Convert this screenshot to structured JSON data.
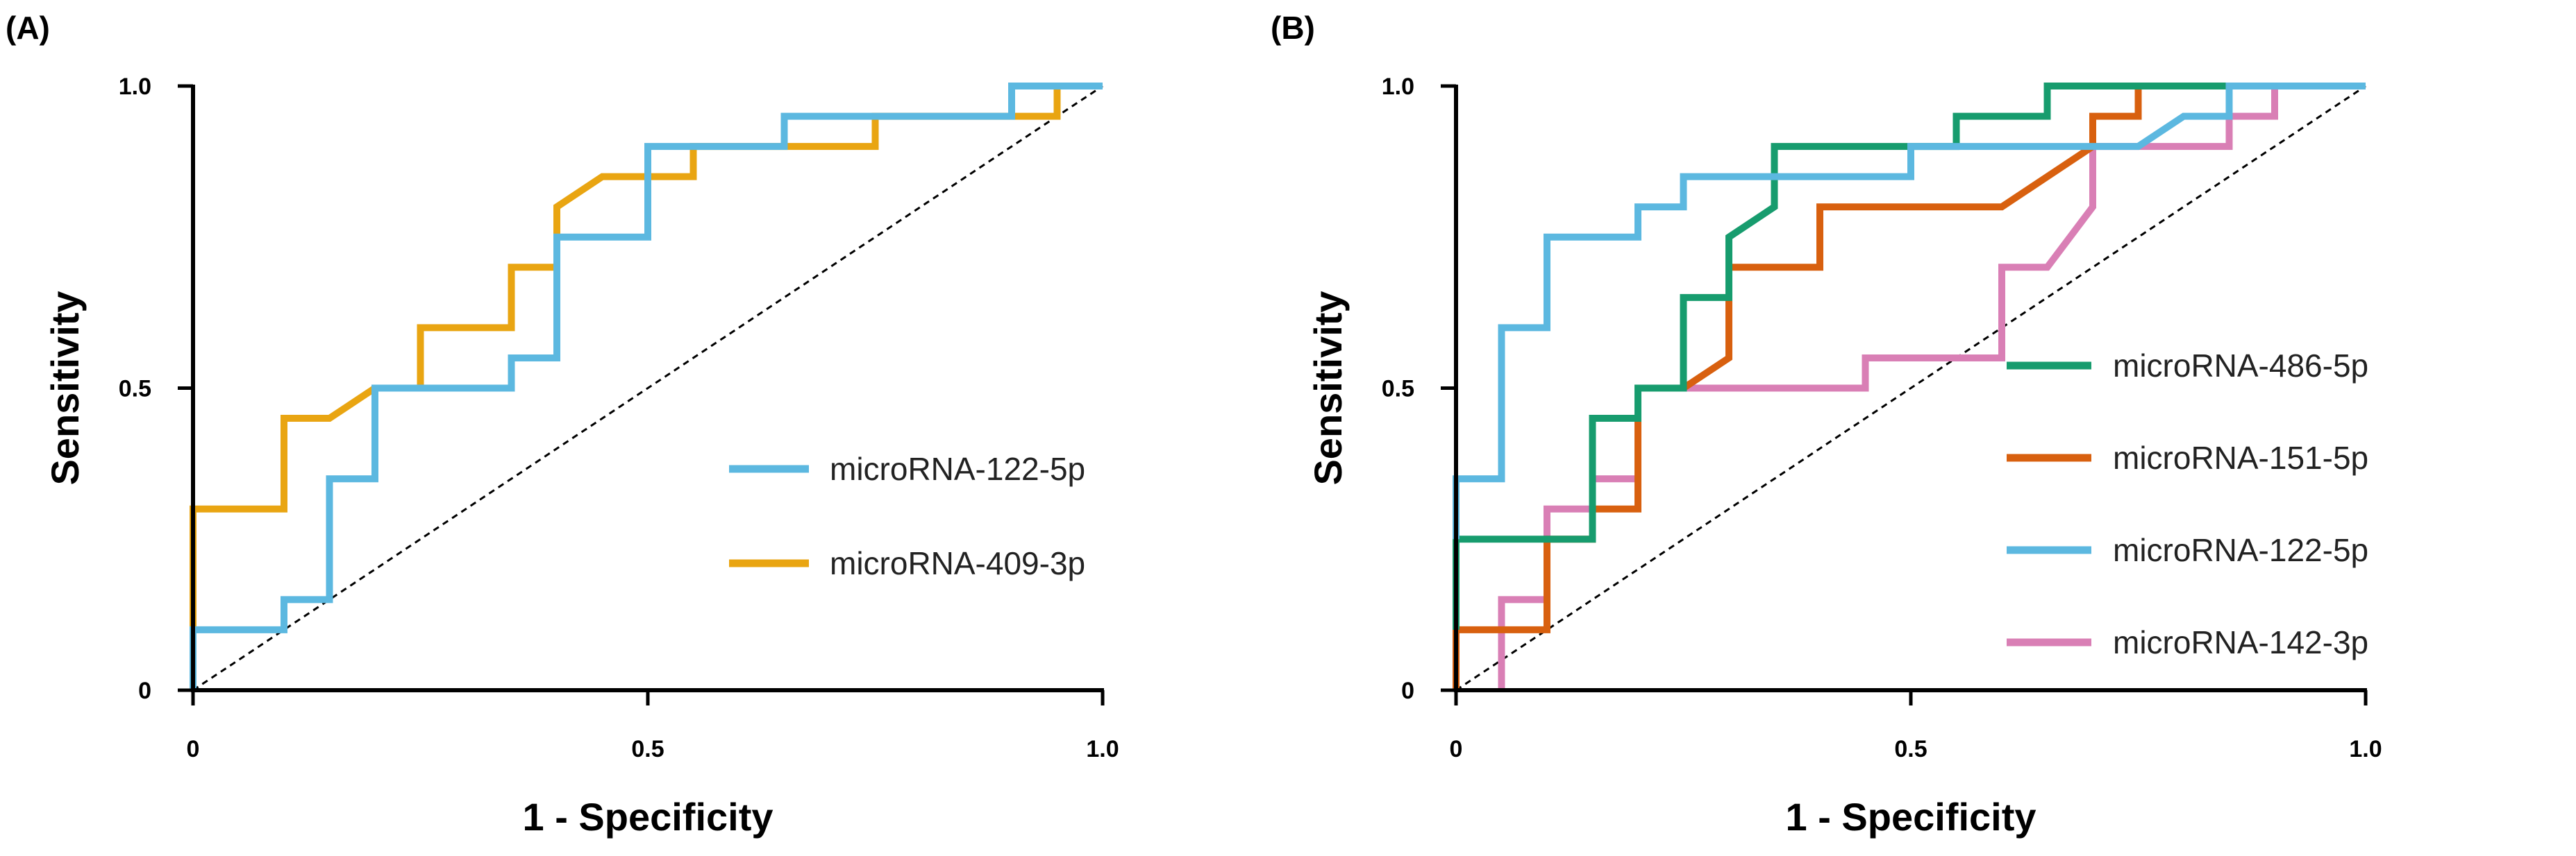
{
  "chart_data": [
    {
      "panel_label": "(A)",
      "type": "line",
      "line_shape": "step",
      "xlabel": "1 - Specificity",
      "ylabel": "Sensitivity",
      "xlim": [
        0,
        1
      ],
      "ylim": [
        0,
        1
      ],
      "xticks": [
        {
          "value": 0,
          "label": "0"
        },
        {
          "value": 0.5,
          "label": "0.5"
        },
        {
          "value": 1,
          "label": "1.0"
        }
      ],
      "yticks": [
        {
          "value": 0,
          "label": "0"
        },
        {
          "value": 0.5,
          "label": "0.5"
        },
        {
          "value": 1,
          "label": "1.0"
        }
      ],
      "grid": false,
      "legend_position": "lower-right",
      "reference_line": "diagonal-dashed",
      "series": [
        {
          "name": "microRNA-409-3p",
          "color": "#E9A512",
          "points": [
            [
              0,
              0.1
            ],
            [
              0,
              0.3
            ],
            [
              0.1,
              0.3
            ],
            [
              0.1,
              0.45
            ],
            [
              0.15,
              0.45
            ],
            [
              0.2,
              0.5
            ],
            [
              0.25,
              0.5
            ],
            [
              0.25,
              0.6
            ],
            [
              0.35,
              0.6
            ],
            [
              0.35,
              0.7
            ],
            [
              0.4,
              0.7
            ],
            [
              0.4,
              0.8
            ],
            [
              0.45,
              0.85
            ],
            [
              0.55,
              0.85
            ],
            [
              0.55,
              0.9
            ],
            [
              0.65,
              0.9
            ],
            [
              0.75,
              0.9
            ],
            [
              0.75,
              0.95
            ],
            [
              0.9,
              0.95
            ],
            [
              0.95,
              0.95
            ],
            [
              0.95,
              1
            ],
            [
              1,
              1
            ]
          ]
        },
        {
          "name": "microRNA-122-5p",
          "color": "#5CB8E0",
          "points": [
            [
              0,
              0
            ],
            [
              0,
              0.1
            ],
            [
              0.1,
              0.1
            ],
            [
              0.1,
              0.15
            ],
            [
              0.15,
              0.15
            ],
            [
              0.15,
              0.35
            ],
            [
              0.2,
              0.35
            ],
            [
              0.2,
              0.5
            ],
            [
              0.35,
              0.5
            ],
            [
              0.35,
              0.55
            ],
            [
              0.4,
              0.55
            ],
            [
              0.4,
              0.75
            ],
            [
              0.5,
              0.75
            ],
            [
              0.5,
              0.9
            ],
            [
              0.65,
              0.9
            ],
            [
              0.65,
              0.95
            ],
            [
              0.9,
              0.95
            ],
            [
              0.9,
              1
            ],
            [
              1,
              1
            ]
          ]
        }
      ],
      "legend_order": [
        "microRNA-122-5p",
        "microRNA-409-3p"
      ]
    },
    {
      "panel_label": "(B)",
      "type": "line",
      "line_shape": "step",
      "xlabel": "1 - Specificity",
      "ylabel": "Sensitivity",
      "xlim": [
        0,
        1
      ],
      "ylim": [
        0,
        1
      ],
      "xticks": [
        {
          "value": 0,
          "label": "0"
        },
        {
          "value": 0.5,
          "label": "0.5"
        },
        {
          "value": 1,
          "label": "1.0"
        }
      ],
      "yticks": [
        {
          "value": 0,
          "label": "0"
        },
        {
          "value": 0.5,
          "label": "0.5"
        },
        {
          "value": 1,
          "label": "1.0"
        }
      ],
      "grid": false,
      "legend_position": "center-right",
      "reference_line": "diagonal-dashed",
      "series": [
        {
          "name": "microRNA-142-3p",
          "color": "#D97FB5",
          "points": [
            [
              0.05,
              0
            ],
            [
              0.05,
              0.15
            ],
            [
              0.1,
              0.15
            ],
            [
              0.1,
              0.3
            ],
            [
              0.15,
              0.3
            ],
            [
              0.15,
              0.35
            ],
            [
              0.2,
              0.35
            ],
            [
              0.2,
              0.5
            ],
            [
              0.45,
              0.5
            ],
            [
              0.45,
              0.55
            ],
            [
              0.6,
              0.55
            ],
            [
              0.6,
              0.7
            ],
            [
              0.65,
              0.7
            ],
            [
              0.7,
              0.8
            ],
            [
              0.7,
              0.9
            ],
            [
              0.85,
              0.9
            ],
            [
              0.85,
              0.95
            ],
            [
              0.9,
              0.95
            ],
            [
              0.9,
              1
            ],
            [
              1,
              1
            ]
          ]
        },
        {
          "name": "microRNA-151-5p",
          "color": "#D8600F",
          "points": [
            [
              0,
              0
            ],
            [
              0,
              0.1
            ],
            [
              0.05,
              0.1
            ],
            [
              0.1,
              0.1
            ],
            [
              0.1,
              0.25
            ],
            [
              0.15,
              0.25
            ],
            [
              0.15,
              0.3
            ],
            [
              0.2,
              0.3
            ],
            [
              0.2,
              0.5
            ],
            [
              0.25,
              0.5
            ],
            [
              0.3,
              0.55
            ],
            [
              0.3,
              0.7
            ],
            [
              0.35,
              0.7
            ],
            [
              0.4,
              0.7
            ],
            [
              0.4,
              0.8
            ],
            [
              0.6,
              0.8
            ],
            [
              0.7,
              0.9
            ],
            [
              0.7,
              0.95
            ],
            [
              0.75,
              0.95
            ],
            [
              0.75,
              1
            ],
            [
              1,
              1
            ]
          ]
        },
        {
          "name": "microRNA-486-5p",
          "color": "#179C6E",
          "points": [
            [
              0,
              0.1
            ],
            [
              0,
              0.25
            ],
            [
              0.15,
              0.25
            ],
            [
              0.15,
              0.45
            ],
            [
              0.2,
              0.45
            ],
            [
              0.2,
              0.5
            ],
            [
              0.25,
              0.5
            ],
            [
              0.25,
              0.65
            ],
            [
              0.3,
              0.65
            ],
            [
              0.3,
              0.75
            ],
            [
              0.35,
              0.8
            ],
            [
              0.35,
              0.9
            ],
            [
              0.45,
              0.9
            ],
            [
              0.55,
              0.9
            ],
            [
              0.55,
              0.95
            ],
            [
              0.65,
              0.95
            ],
            [
              0.65,
              1
            ],
            [
              1,
              1
            ]
          ]
        },
        {
          "name": "microRNA-122-5p",
          "color": "#5CB8E0",
          "points": [
            [
              0,
              0.25
            ],
            [
              0,
              0.35
            ],
            [
              0.05,
              0.35
            ],
            [
              0.05,
              0.6
            ],
            [
              0.1,
              0.6
            ],
            [
              0.1,
              0.75
            ],
            [
              0.2,
              0.75
            ],
            [
              0.2,
              0.8
            ],
            [
              0.25,
              0.8
            ],
            [
              0.25,
              0.85
            ],
            [
              0.35,
              0.85
            ],
            [
              0.45,
              0.85
            ],
            [
              0.5,
              0.85
            ],
            [
              0.5,
              0.9
            ],
            [
              0.65,
              0.9
            ],
            [
              0.75,
              0.9
            ],
            [
              0.8,
              0.95
            ],
            [
              0.85,
              0.95
            ],
            [
              0.85,
              1
            ],
            [
              1,
              1
            ]
          ]
        }
      ],
      "legend_order": [
        "microRNA-486-5p",
        "microRNA-151-5p",
        "microRNA-122-5p",
        "microRNA-142-3p"
      ]
    }
  ]
}
